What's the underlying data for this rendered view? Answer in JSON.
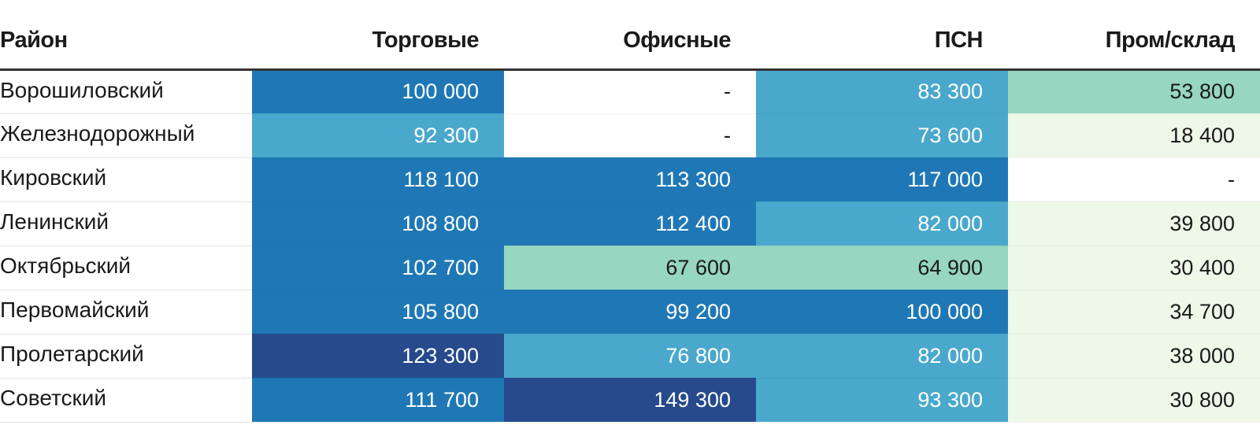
{
  "chart_data": {
    "type": "table",
    "columns": [
      "Район",
      "Торговые",
      "Офисные",
      "ПСН",
      "Пром/склад"
    ],
    "rows": [
      {
        "name": "Ворошиловский",
        "values": [
          "100 000",
          "-",
          "83 300",
          "53 800"
        ]
      },
      {
        "name": "Железнодорожный",
        "values": [
          "92 300",
          "-",
          "73 600",
          "18 400"
        ]
      },
      {
        "name": "Кировский",
        "values": [
          "118 100",
          "113 300",
          "117 000",
          "-"
        ]
      },
      {
        "name": "Ленинский",
        "values": [
          "108 800",
          "112 400",
          "82 000",
          "39 800"
        ]
      },
      {
        "name": "Октябрьский",
        "values": [
          "102 700",
          "67 600",
          "64 900",
          "30 400"
        ]
      },
      {
        "name": "Первомайский",
        "values": [
          "105 800",
          "99 200",
          "100 000",
          "34 700"
        ]
      },
      {
        "name": "Пролетарский",
        "values": [
          "123 300",
          "76 800",
          "82 000",
          "38 000"
        ]
      },
      {
        "name": "Советский",
        "values": [
          "111 700",
          "149 300",
          "93 300",
          "30 800"
        ]
      }
    ],
    "color_scale": {
      "bins": [
        {
          "min": 0,
          "max": 25000,
          "color": "#edf8e9",
          "text": "#1a1a1a"
        },
        {
          "min": 25000,
          "max": 55000,
          "color": "#edf8e9",
          "text": "#1a1a1a"
        },
        {
          "min": 50000,
          "max": 70000,
          "color": "#97d6c0",
          "text": "#1a1a1a"
        },
        {
          "min": 70000,
          "max": 95000,
          "color": "#4aa8cc",
          "text": "#ffffff"
        },
        {
          "min": 95000,
          "max": 120000,
          "color": "#1f78b5",
          "text": "#ffffff"
        },
        {
          "min": 120000,
          "max": 200000,
          "color": "#264a8c",
          "text": "#ffffff"
        }
      ],
      "empty_color": "#ffffff"
    }
  }
}
